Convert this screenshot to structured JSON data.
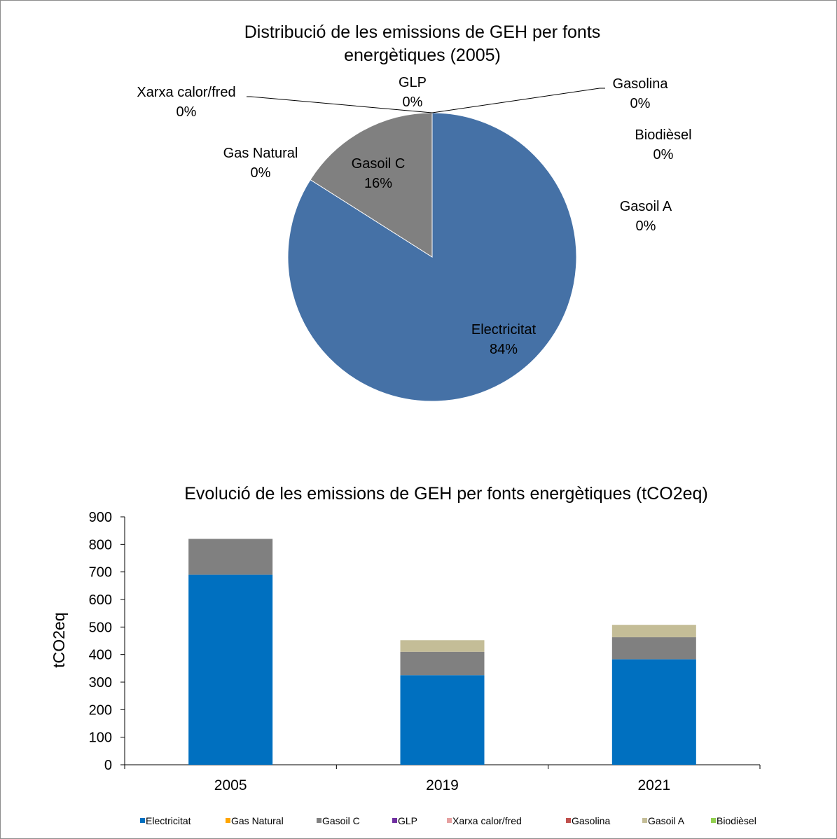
{
  "chart_data": [
    {
      "type": "pie",
      "title_line1": "Distribució de les emissions de GEH per  fonts",
      "title_line2": "energètiques (2005)",
      "slices": [
        {
          "name": "Electricitat",
          "pct_label": "84%",
          "value": 84,
          "color": "#4571a6"
        },
        {
          "name": "Gas Natural",
          "pct_label": "0%",
          "value": 0,
          "color": "#f59d1e"
        },
        {
          "name": "Gasoil C",
          "pct_label": "16%",
          "value": 16,
          "color": "#808080"
        },
        {
          "name": "GLP",
          "pct_label": "0%",
          "value": 0,
          "color": "#7030a0"
        },
        {
          "name": "Xarxa calor/fred",
          "pct_label": "0%",
          "value": 0,
          "color": "#e6a0a0"
        },
        {
          "name": "Gasolina",
          "pct_label": "0%",
          "value": 0,
          "color": "#c0504d"
        },
        {
          "name": "Gasoil A",
          "pct_label": "0%",
          "value": 0,
          "color": "#c4bd97"
        },
        {
          "name": "Biodièsel",
          "pct_label": "0%",
          "value": 0,
          "color": "#92d050"
        }
      ]
    },
    {
      "type": "bar",
      "stacked": true,
      "title": "Evolució de les emissions de GEH per fonts energètiques (tCO2eq)",
      "ylabel": "tCO2eq",
      "ylim": [
        0,
        900
      ],
      "yticks": [
        0,
        100,
        200,
        300,
        400,
        500,
        600,
        700,
        800,
        900
      ],
      "categories": [
        "2005",
        "2019",
        "2021"
      ],
      "legend_position": "bottom",
      "series": [
        {
          "name": "Electricitat",
          "color": "#0070c0",
          "values": [
            690,
            325,
            383
          ]
        },
        {
          "name": "Gas Natural",
          "color": "#ffa500",
          "values": [
            0,
            0,
            0
          ]
        },
        {
          "name": "Gasoil C",
          "color": "#808080",
          "values": [
            130,
            85,
            80
          ]
        },
        {
          "name": "GLP",
          "color": "#7030a0",
          "values": [
            0,
            0,
            0
          ]
        },
        {
          "name": "Xarxa calor/fred",
          "color": "#e6a0a0",
          "values": [
            0,
            0,
            0
          ]
        },
        {
          "name": "Gasolina",
          "color": "#c0504d",
          "values": [
            0,
            0,
            0
          ]
        },
        {
          "name": "Gasoil A",
          "color": "#c4bd97",
          "values": [
            0,
            42,
            45
          ]
        },
        {
          "name": "Biodièsel",
          "color": "#92d050",
          "values": [
            0,
            0,
            0
          ]
        }
      ]
    }
  ]
}
